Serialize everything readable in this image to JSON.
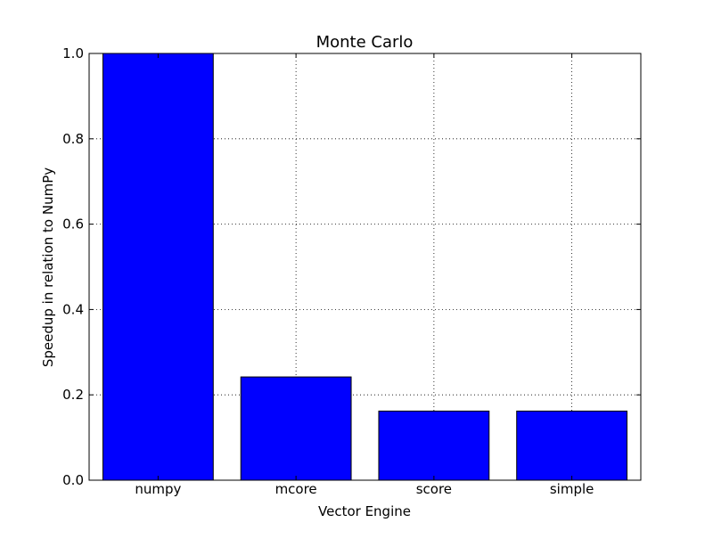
{
  "chart_data": {
    "type": "bar",
    "title": "Monte Carlo",
    "xlabel": "Vector Engine",
    "ylabel": "Speedup in relation to NumPy",
    "categories": [
      "numpy",
      "mcore",
      "score",
      "simple"
    ],
    "values": [
      1.0,
      0.242,
      0.162,
      0.162
    ],
    "ylim": [
      0.0,
      1.0
    ],
    "yticks": [
      0.0,
      0.2,
      0.4,
      0.6,
      0.8,
      1.0
    ],
    "ytick_labels": [
      "0.0",
      "0.2",
      "0.4",
      "0.6",
      "0.8",
      "1.0"
    ],
    "grid": true,
    "legend": "none",
    "bar_color": "#0000ff",
    "edge_color": "#000000"
  }
}
